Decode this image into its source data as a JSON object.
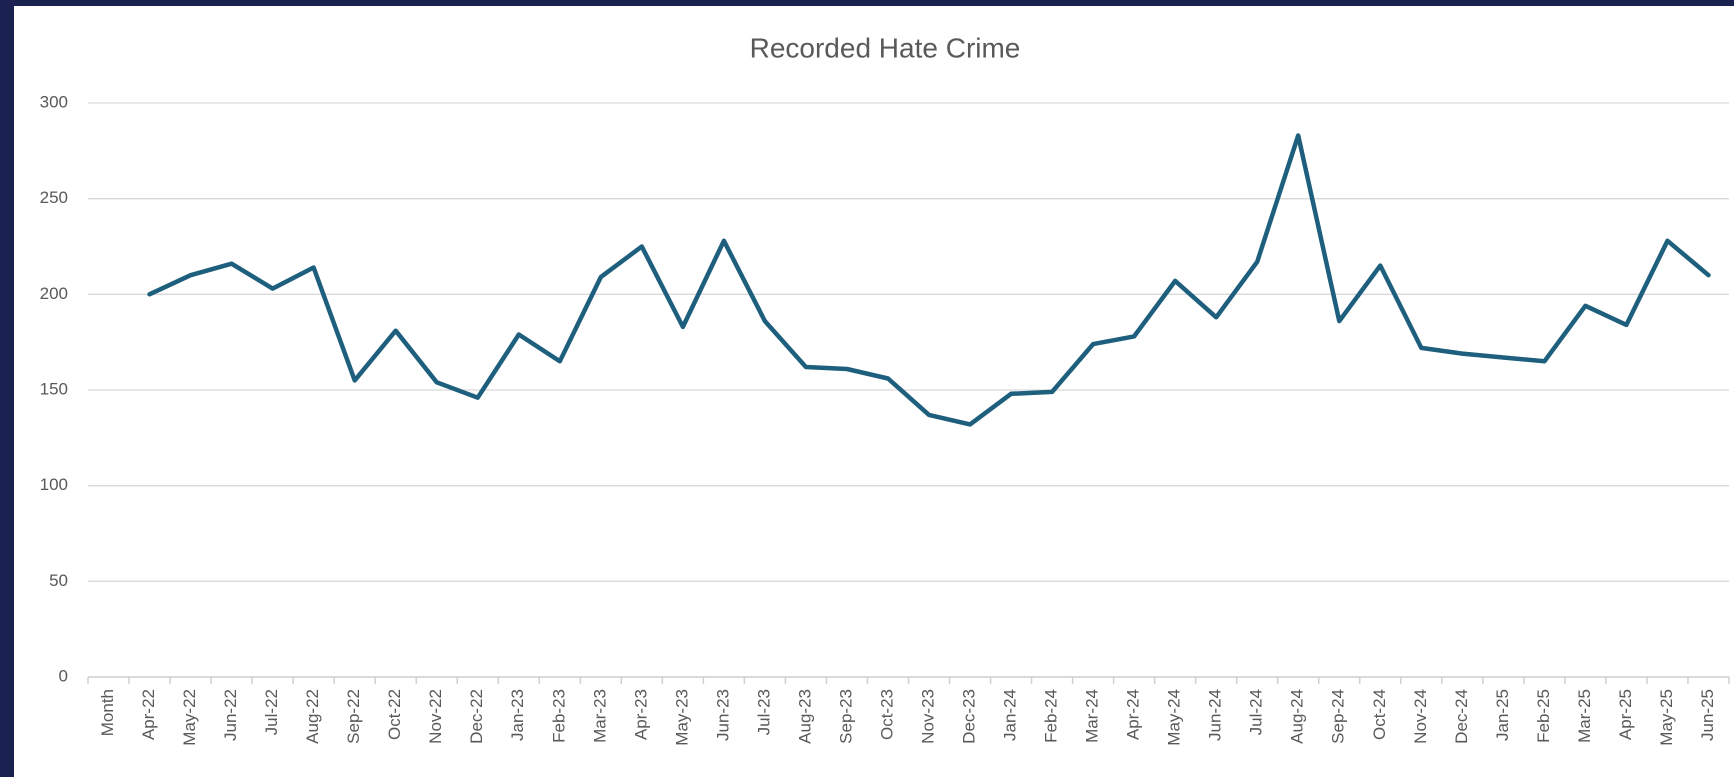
{
  "chart_data": {
    "type": "line",
    "title": "Recorded Hate Crime",
    "categories": [
      "Month",
      "Apr-22",
      "May-22",
      "Jun-22",
      "Jul-22",
      "Aug-22",
      "Sep-22",
      "Oct-22",
      "Nov-22",
      "Dec-22",
      "Jan-23",
      "Feb-23",
      "Mar-23",
      "Apr-23",
      "May-23",
      "Jun-23",
      "Jul-23",
      "Aug-23",
      "Sep-23",
      "Oct-23",
      "Nov-23",
      "Dec-23",
      "Jan-24",
      "Feb-24",
      "Mar-24",
      "Apr-24",
      "May-24",
      "Jun-24",
      "Jul-24",
      "Aug-24",
      "Sep-24",
      "Oct-24",
      "Nov-24",
      "Dec-24",
      "Jan-25",
      "Feb-25",
      "Mar-25",
      "Apr-25",
      "May-25",
      "Jun-25"
    ],
    "values": [
      null,
      200,
      210,
      216,
      203,
      214,
      155,
      181,
      154,
      146,
      179,
      165,
      209,
      225,
      183,
      228,
      186,
      162,
      161,
      156,
      137,
      132,
      148,
      149,
      174,
      178,
      207,
      188,
      217,
      283,
      186,
      215,
      172,
      169,
      167,
      165,
      194,
      184,
      228,
      210
    ],
    "color": "#1f5f7e",
    "ylim": [
      0,
      300
    ],
    "yticks": [
      0,
      50,
      100,
      150,
      200,
      250,
      300
    ],
    "grid": true
  }
}
